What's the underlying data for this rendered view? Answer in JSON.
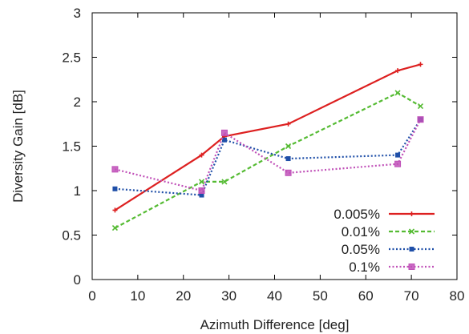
{
  "chart_data": {
    "type": "line",
    "xlabel": "Azimuth Difference [deg]",
    "ylabel": "Diversity Gain [dB]",
    "xlim": [
      0,
      80
    ],
    "ylim": [
      0,
      3
    ],
    "xticks": [
      0,
      10,
      20,
      30,
      40,
      50,
      60,
      70,
      80
    ],
    "yticks": [
      0,
      0.5,
      1,
      1.5,
      2,
      2.5,
      3
    ],
    "xtick_labels": [
      "0",
      "10",
      "20",
      "30",
      "40",
      "50",
      "60",
      "70",
      "80"
    ],
    "ytick_labels": [
      "0",
      "0.5",
      "1",
      "1.5",
      "2",
      "2.5",
      "3"
    ],
    "grid": false,
    "legend_position": "bottom-right",
    "series": [
      {
        "name": "0.005%",
        "color": "#dd2020",
        "line_style": "solid",
        "marker": "plus",
        "x": [
          5,
          24,
          29,
          43,
          67,
          72
        ],
        "y": [
          0.78,
          1.4,
          1.61,
          1.75,
          2.35,
          2.42
        ]
      },
      {
        "name": "0.01%",
        "color": "#55bb33",
        "line_style": "dashed",
        "marker": "cross",
        "x": [
          5,
          24,
          29,
          43,
          67,
          72
        ],
        "y": [
          0.58,
          1.1,
          1.1,
          1.5,
          2.1,
          1.95
        ]
      },
      {
        "name": "0.05%",
        "color": "#1f4fa8",
        "line_style": "dotted",
        "marker": "square",
        "x": [
          5,
          24,
          29,
          43,
          67,
          72
        ],
        "y": [
          1.02,
          0.95,
          1.57,
          1.36,
          1.4,
          1.8
        ]
      },
      {
        "name": "0.1%",
        "color": "#c050b8",
        "line_style": "dotted",
        "marker": "square-open",
        "x": [
          5,
          24,
          29,
          43,
          67,
          72
        ],
        "y": [
          1.24,
          1.0,
          1.65,
          1.2,
          1.3,
          1.8
        ]
      }
    ]
  }
}
